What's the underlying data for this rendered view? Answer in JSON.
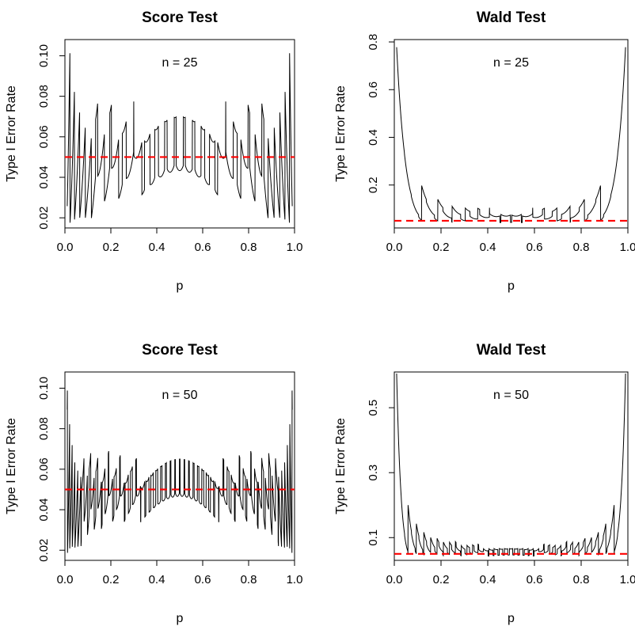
{
  "chart_data": [
    {
      "type": "line",
      "title": "Score Test",
      "xlabel": "p",
      "ylabel": "Type I Error Rate",
      "annotation": "n = 25",
      "n": 25,
      "test": "score",
      "alpha": 0.05,
      "xlim": [
        0,
        1
      ],
      "ylim": [
        0.015,
        0.108
      ],
      "xticks": [
        0.0,
        0.2,
        0.4,
        0.6,
        0.8,
        1.0
      ],
      "xtick_labels": [
        "0.0",
        "0.2",
        "0.4",
        "0.6",
        "0.8",
        "1.0"
      ],
      "yticks": [
        0.02,
        0.04,
        0.06,
        0.08,
        0.1
      ],
      "ytick_labels": [
        "0.02",
        "0.04",
        "0.06",
        "0.08",
        "0.10"
      ],
      "reference_line": {
        "y": 0.05,
        "color": "#ff0000",
        "style": "dashed"
      },
      "grid": false
    },
    {
      "type": "line",
      "title": "Wald Test",
      "xlabel": "p",
      "ylabel": "Type I Error Rate",
      "annotation": "n = 25",
      "n": 25,
      "test": "wald",
      "alpha": 0.05,
      "xlim": [
        0,
        1
      ],
      "ylim": [
        0.02,
        0.81
      ],
      "xticks": [
        0.0,
        0.2,
        0.4,
        0.6,
        0.8,
        1.0
      ],
      "xtick_labels": [
        "0.0",
        "0.2",
        "0.4",
        "0.6",
        "0.8",
        "1.0"
      ],
      "yticks": [
        0.2,
        0.4,
        0.6,
        0.8
      ],
      "ytick_labels": [
        "0.2",
        "0.4",
        "0.6",
        "0.8"
      ],
      "reference_line": {
        "y": 0.05,
        "color": "#ff0000",
        "style": "dashed"
      },
      "grid": false
    },
    {
      "type": "line",
      "title": "Score Test",
      "xlabel": "p",
      "ylabel": "Type I Error Rate",
      "annotation": "n = 50",
      "n": 50,
      "test": "score",
      "alpha": 0.05,
      "xlim": [
        0,
        1
      ],
      "ylim": [
        0.015,
        0.108
      ],
      "xticks": [
        0.0,
        0.2,
        0.4,
        0.6,
        0.8,
        1.0
      ],
      "xtick_labels": [
        "0.0",
        "0.2",
        "0.4",
        "0.6",
        "0.8",
        "1.0"
      ],
      "yticks": [
        0.02,
        0.04,
        0.06,
        0.08,
        0.1
      ],
      "ytick_labels": [
        "0.02",
        "0.04",
        "0.06",
        "0.08",
        "0.10"
      ],
      "reference_line": {
        "y": 0.05,
        "color": "#ff0000",
        "style": "dashed"
      },
      "grid": false
    },
    {
      "type": "line",
      "title": "Wald Test",
      "xlabel": "p",
      "ylabel": "Type I Error Rate",
      "annotation": "n = 50",
      "n": 50,
      "test": "wald",
      "alpha": 0.05,
      "xlim": [
        0,
        1
      ],
      "ylim": [
        0.03,
        0.61
      ],
      "xticks": [
        0.0,
        0.2,
        0.4,
        0.6,
        0.8,
        1.0
      ],
      "xtick_labels": [
        "0.0",
        "0.2",
        "0.4",
        "0.6",
        "0.8",
        "1.0"
      ],
      "yticks": [
        0.1,
        0.3,
        0.5
      ],
      "ytick_labels": [
        "0.1",
        "0.3",
        "0.5"
      ],
      "reference_line": {
        "y": 0.05,
        "color": "#ff0000",
        "style": "dashed"
      },
      "grid": false
    }
  ]
}
